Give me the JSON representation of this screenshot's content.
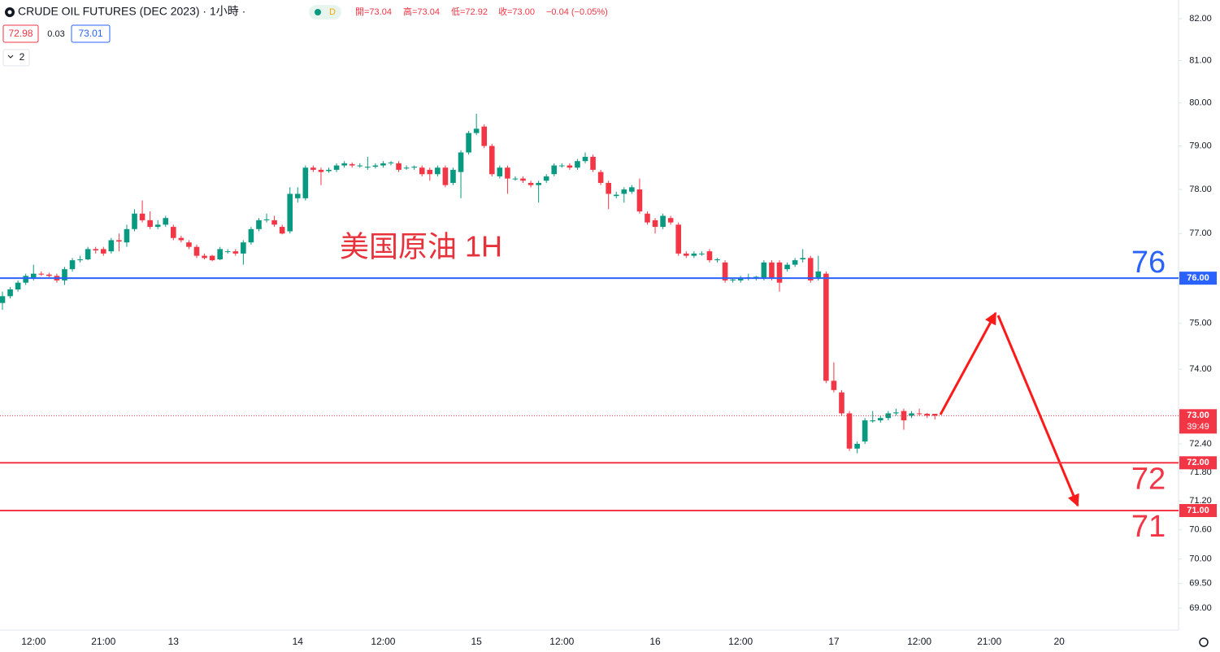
{
  "header": {
    "title": "CRUDE OIL FUTURES (DEC 2023) · 1小時 ·",
    "badge": "D",
    "ohlc": [
      "開=73.04",
      "高=73.04",
      "低=72.92",
      "收=73.00",
      "−0.04 (−0.05%)"
    ],
    "bid": "72.98",
    "spread": "0.03",
    "ask": "73.01",
    "indicators": "2"
  },
  "chart_data": {
    "type": "candlestick",
    "annotation": "美国原油 1H",
    "log_scale": true,
    "grid": false,
    "up_color": "#089981",
    "down_color": "#f23645",
    "ylim": [
      68.64,
      82.45
    ],
    "yticks": [
      {
        "value": 82,
        "label": "82.00"
      },
      {
        "value": 81,
        "label": "81.00"
      },
      {
        "value": 80,
        "label": "80.00"
      },
      {
        "value": 79,
        "label": "79.00"
      },
      {
        "value": 78,
        "label": "78.00"
      },
      {
        "value": 77,
        "label": "77.00"
      },
      {
        "value": 75,
        "label": "75.00"
      },
      {
        "value": 74,
        "label": "74.00"
      },
      {
        "value": 72.4,
        "label": "72.40"
      },
      {
        "value": 71.8,
        "label": "71.80"
      },
      {
        "value": 71.2,
        "label": "71.20"
      },
      {
        "value": 70.6,
        "label": "70.60"
      },
      {
        "value": 70,
        "label": "70.00"
      },
      {
        "value": 69.5,
        "label": "69.50"
      },
      {
        "value": 69,
        "label": "69.00"
      }
    ],
    "price_lines": [
      {
        "value": 76,
        "label": "76.00",
        "big_label": "76",
        "color": "#2962ff"
      },
      {
        "value": 72,
        "label": "72.00",
        "big_label": "72",
        "color": "#f23645"
      },
      {
        "value": 71,
        "label": "71.00",
        "big_label": "71",
        "color": "#f23645"
      }
    ],
    "current_price": {
      "value": 73,
      "label": "73.00",
      "countdown": "39:49",
      "color": "#f23645"
    },
    "categories": [
      null,
      null,
      null,
      null,
      "12:00",
      null,
      null,
      null,
      null,
      null,
      null,
      null,
      null,
      "21:00",
      null,
      null,
      null,
      null,
      null,
      null,
      null,
      null,
      "13",
      null,
      null,
      null,
      null,
      null,
      null,
      null,
      null,
      null,
      null,
      null,
      null,
      null,
      null,
      null,
      "14",
      null,
      null,
      null,
      null,
      null,
      null,
      null,
      null,
      null,
      null,
      "12:00",
      null,
      null,
      null,
      null,
      null,
      null,
      null,
      null,
      null,
      null,
      null,
      "15",
      null,
      null,
      null,
      null,
      null,
      null,
      null,
      null,
      null,
      null,
      "12:00",
      null,
      null,
      null,
      null,
      null,
      null,
      null,
      null,
      null,
      null,
      null,
      "16",
      null,
      null,
      null,
      null,
      null,
      null,
      null,
      null,
      null,
      null,
      "12:00",
      null,
      null,
      null,
      null,
      null,
      null,
      null,
      null,
      null,
      null,
      null,
      "17",
      null,
      null,
      null,
      null,
      null,
      null,
      null,
      null,
      null,
      null,
      "12:00",
      null,
      null,
      null,
      null,
      null,
      null,
      null,
      null,
      "21:00",
      null,
      null,
      null,
      null,
      null,
      null,
      null,
      null,
      "20",
      null,
      null,
      null,
      null,
      null,
      null,
      null,
      null,
      null,
      null,
      null,
      null,
      null,
      null,
      null
    ],
    "candles": [
      [
        75.45,
        75.7,
        75.3,
        75.6
      ],
      [
        75.6,
        75.8,
        75.55,
        75.75
      ],
      [
        75.75,
        75.95,
        75.7,
        75.9
      ],
      [
        75.9,
        76.1,
        75.85,
        76.05
      ],
      [
        76.0,
        76.3,
        75.95,
        76.1
      ],
      [
        76.1,
        76.15,
        76.05,
        76.08
      ],
      [
        76.08,
        76.12,
        76.0,
        76.05
      ],
      [
        76.05,
        76.1,
        75.9,
        75.95
      ],
      [
        75.95,
        76.25,
        75.85,
        76.2
      ],
      [
        76.2,
        76.45,
        76.15,
        76.4
      ],
      [
        76.4,
        76.5,
        76.35,
        76.42
      ],
      [
        76.42,
        76.7,
        76.4,
        76.65
      ],
      [
        76.65,
        76.7,
        76.55,
        76.62
      ],
      [
        76.65,
        76.7,
        76.5,
        76.55
      ],
      [
        76.6,
        76.9,
        76.55,
        76.85
      ],
      [
        76.85,
        77.0,
        76.6,
        76.82
      ],
      [
        76.8,
        77.2,
        76.7,
        77.1
      ],
      [
        77.1,
        77.55,
        77.05,
        77.45
      ],
      [
        77.45,
        77.75,
        77.25,
        77.3
      ],
      [
        77.3,
        77.5,
        77.1,
        77.15
      ],
      [
        77.15,
        77.3,
        77.1,
        77.2
      ],
      [
        77.2,
        77.4,
        77.15,
        77.35
      ],
      [
        77.15,
        77.2,
        76.85,
        76.9
      ],
      [
        76.9,
        76.95,
        76.8,
        76.85
      ],
      [
        76.8,
        76.85,
        76.65,
        76.7
      ],
      [
        76.7,
        76.75,
        76.45,
        76.5
      ],
      [
        76.5,
        76.55,
        76.42,
        76.45
      ],
      [
        76.5,
        76.52,
        76.38,
        76.4
      ],
      [
        76.42,
        76.7,
        76.4,
        76.65
      ],
      [
        76.6,
        76.65,
        76.55,
        76.6
      ],
      [
        76.6,
        76.65,
        76.5,
        76.55
      ],
      [
        76.55,
        76.85,
        76.3,
        76.8
      ],
      [
        76.8,
        77.15,
        76.75,
        77.1
      ],
      [
        77.1,
        77.35,
        77.05,
        77.3
      ],
      [
        77.3,
        77.45,
        77.25,
        77.32
      ],
      [
        77.3,
        77.4,
        77.15,
        77.2
      ],
      [
        77.15,
        77.2,
        76.98,
        77.0
      ],
      [
        77.05,
        78.05,
        77.0,
        77.9
      ],
      [
        77.8,
        78.05,
        77.7,
        77.9
      ],
      [
        77.8,
        78.55,
        77.75,
        78.5
      ],
      [
        78.5,
        78.55,
        78.4,
        78.45
      ],
      [
        78.45,
        78.5,
        78.1,
        78.4
      ],
      [
        78.42,
        78.5,
        78.38,
        78.45
      ],
      [
        78.45,
        78.6,
        78.4,
        78.55
      ],
      [
        78.55,
        78.65,
        78.5,
        78.6
      ],
      [
        78.58,
        78.62,
        78.5,
        78.55
      ],
      [
        78.55,
        78.6,
        78.5,
        78.55
      ],
      [
        78.5,
        78.75,
        78.45,
        78.52
      ],
      [
        78.52,
        78.6,
        78.48,
        78.55
      ],
      [
        78.55,
        78.65,
        78.5,
        78.6
      ],
      [
        78.6,
        78.65,
        78.55,
        78.62
      ],
      [
        78.6,
        78.65,
        78.4,
        78.45
      ],
      [
        78.48,
        78.55,
        78.45,
        78.5
      ],
      [
        78.5,
        78.55,
        78.45,
        78.52
      ],
      [
        78.5,
        78.55,
        78.3,
        78.35
      ],
      [
        78.45,
        78.5,
        78.2,
        78.35
      ],
      [
        78.35,
        78.55,
        78.3,
        78.5
      ],
      [
        78.5,
        78.55,
        78.05,
        78.1
      ],
      [
        78.15,
        78.5,
        78.1,
        78.45
      ],
      [
        78.4,
        78.9,
        77.8,
        78.85
      ],
      [
        78.85,
        79.35,
        78.8,
        79.3
      ],
      [
        79.3,
        79.75,
        79.25,
        79.4
      ],
      [
        79.45,
        79.5,
        78.95,
        79.0
      ],
      [
        79.0,
        79.05,
        78.3,
        78.35
      ],
      [
        78.3,
        78.55,
        78.25,
        78.5
      ],
      [
        78.5,
        78.55,
        77.9,
        78.25
      ],
      [
        78.25,
        78.3,
        78.2,
        78.25
      ],
      [
        78.25,
        78.3,
        78.15,
        78.2
      ],
      [
        78.15,
        78.2,
        78.05,
        78.1
      ],
      [
        78.1,
        78.2,
        77.7,
        78.15
      ],
      [
        78.2,
        78.35,
        78.15,
        78.3
      ],
      [
        78.35,
        78.6,
        78.3,
        78.55
      ],
      [
        78.55,
        78.6,
        78.5,
        78.55
      ],
      [
        78.55,
        78.6,
        78.45,
        78.5
      ],
      [
        78.5,
        78.7,
        78.45,
        78.65
      ],
      [
        78.65,
        78.85,
        78.6,
        78.75
      ],
      [
        78.75,
        78.8,
        78.4,
        78.45
      ],
      [
        78.4,
        78.45,
        78.1,
        78.15
      ],
      [
        78.15,
        78.2,
        77.55,
        77.9
      ],
      [
        77.85,
        77.95,
        77.8,
        77.88
      ],
      [
        77.9,
        78.05,
        77.7,
        78.0
      ],
      [
        77.95,
        78.1,
        77.9,
        78.05
      ],
      [
        78.0,
        78.25,
        77.45,
        77.5
      ],
      [
        77.45,
        77.5,
        77.2,
        77.25
      ],
      [
        77.3,
        77.35,
        77.0,
        77.15
      ],
      [
        77.15,
        77.45,
        77.1,
        77.4
      ],
      [
        77.35,
        77.4,
        77.2,
        77.25
      ],
      [
        77.2,
        77.25,
        76.5,
        76.55
      ],
      [
        76.55,
        76.6,
        76.45,
        76.5
      ],
      [
        76.5,
        76.6,
        76.45,
        76.55
      ],
      [
        76.55,
        76.6,
        76.5,
        76.55
      ],
      [
        76.6,
        76.65,
        76.35,
        76.4
      ],
      [
        76.4,
        76.45,
        76.35,
        76.42
      ],
      [
        76.35,
        76.4,
        75.9,
        75.95
      ],
      [
        75.95,
        76.0,
        75.9,
        75.97
      ],
      [
        75.95,
        76.05,
        75.9,
        76.0
      ],
      [
        76.0,
        76.1,
        75.95,
        76.02
      ],
      [
        76.0,
        76.05,
        75.95,
        76.03
      ],
      [
        76.0,
        76.4,
        75.95,
        76.35
      ],
      [
        76.35,
        76.4,
        75.95,
        76.0
      ],
      [
        76.35,
        76.4,
        75.7,
        75.9
      ],
      [
        76.2,
        76.35,
        76.15,
        76.3
      ],
      [
        76.3,
        76.45,
        76.25,
        76.4
      ],
      [
        76.42,
        76.65,
        76.35,
        76.45
      ],
      [
        76.45,
        76.5,
        75.9,
        75.95
      ],
      [
        76.0,
        76.5,
        75.95,
        76.15
      ],
      [
        76.1,
        76.15,
        73.7,
        73.75
      ],
      [
        73.75,
        74.15,
        73.5,
        73.55
      ],
      [
        73.5,
        73.55,
        73.0,
        73.05
      ],
      [
        73.05,
        73.1,
        72.25,
        72.3
      ],
      [
        72.3,
        72.45,
        72.2,
        72.4
      ],
      [
        72.45,
        72.95,
        72.4,
        72.9
      ],
      [
        72.88,
        73.1,
        72.85,
        72.9
      ],
      [
        72.9,
        73.0,
        72.85,
        72.95
      ],
      [
        72.95,
        73.1,
        72.9,
        73.05
      ],
      [
        73.05,
        73.15,
        73.0,
        73.07
      ],
      [
        73.1,
        73.15,
        72.7,
        72.9
      ],
      [
        73.0,
        73.1,
        72.95,
        73.05
      ],
      [
        73.05,
        73.15,
        73.0,
        73.04
      ],
      [
        73.04,
        73.06,
        72.95,
        73.0
      ],
      [
        73.04,
        73.04,
        72.92,
        73.0
      ],
      null,
      null,
      null,
      null,
      null,
      null,
      null,
      null,
      null,
      null,
      null,
      null,
      null,
      null,
      null,
      null,
      null,
      null,
      null,
      null,
      null,
      null,
      null,
      null,
      null,
      null,
      null,
      null,
      null,
      null,
      null
    ]
  }
}
